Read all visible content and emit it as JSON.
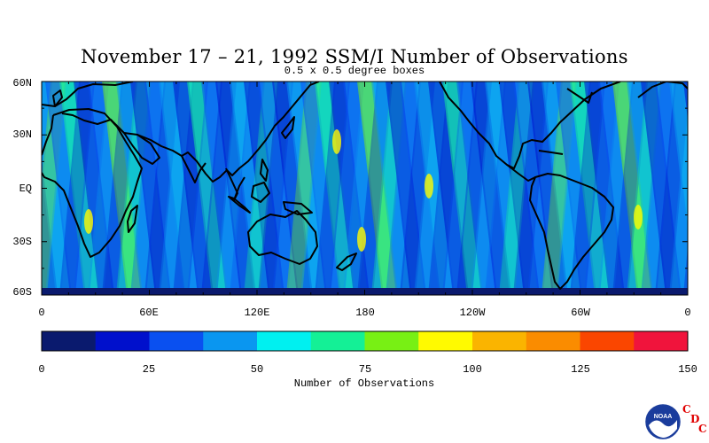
{
  "title": "November 17 – 21, 1992 SSM/I Number of Observations",
  "subtitle": "0.5 x 0.5 degree boxes",
  "lat_labels": [
    "60N",
    "30N",
    "EQ",
    "30S",
    "60S"
  ],
  "lon_labels": [
    "0",
    "60E",
    "120E",
    "180",
    "120W",
    "60W",
    "0"
  ],
  "colorbar": {
    "title": "Number of Observations",
    "ticks": [
      "0",
      "25",
      "50",
      "75",
      "100",
      "125",
      "150"
    ],
    "colors": [
      "#0a1a6e",
      "#0010cc",
      "#0a50f0",
      "#0a96f0",
      "#00f0f0",
      "#14f096",
      "#78f014",
      "#fffa00",
      "#fab400",
      "#fa8c00",
      "#fa4600",
      "#f0143c"
    ]
  },
  "map_background_color": "#19c8f0",
  "logo": {
    "agency": "NOAA",
    "letters": [
      "C",
      "D",
      "C"
    ]
  }
}
